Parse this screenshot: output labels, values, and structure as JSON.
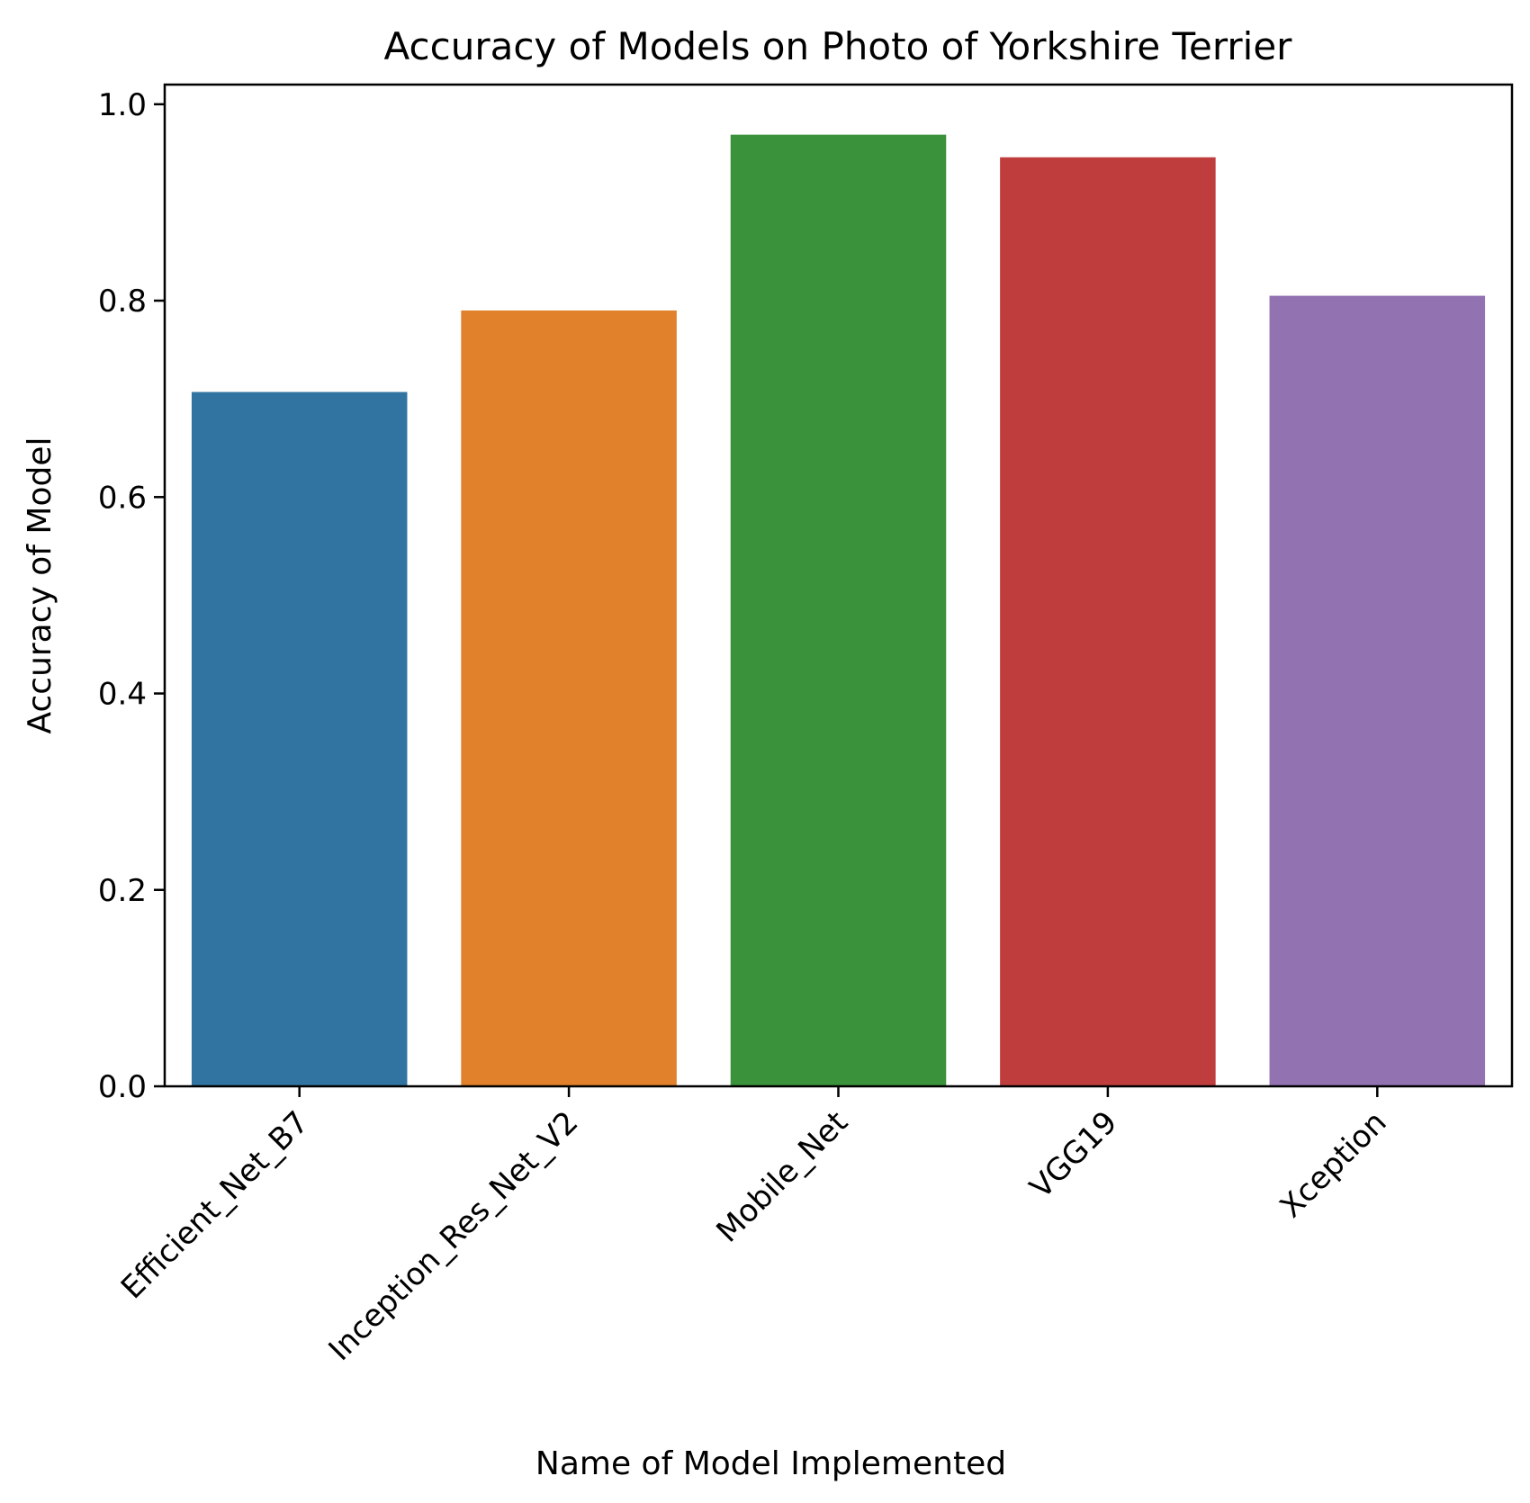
{
  "chart_data": {
    "type": "bar",
    "title": "Accuracy of Models on Photo of Yorkshire Terrier",
    "xlabel": "Name of Model Implemented",
    "ylabel": "Accuracy of Model",
    "categories": [
      "Efficient_Net_B7",
      "Inception_Res_Net_V2",
      "Mobile_Net",
      "VGG19",
      "Xception"
    ],
    "values": [
      0.707,
      0.79,
      0.969,
      0.946,
      0.805
    ],
    "colors": [
      "#3274a1",
      "#e1812c",
      "#3a923a",
      "#c03d3e",
      "#9372b2"
    ],
    "ylim": [
      0,
      1.02
    ],
    "yticks": [
      0.0,
      0.2,
      0.4,
      0.6,
      0.8,
      1.0
    ],
    "ytick_labels": [
      "0.0",
      "0.2",
      "0.4",
      "0.6",
      "0.8",
      "1.0"
    ],
    "grid": false,
    "legend": "none"
  }
}
